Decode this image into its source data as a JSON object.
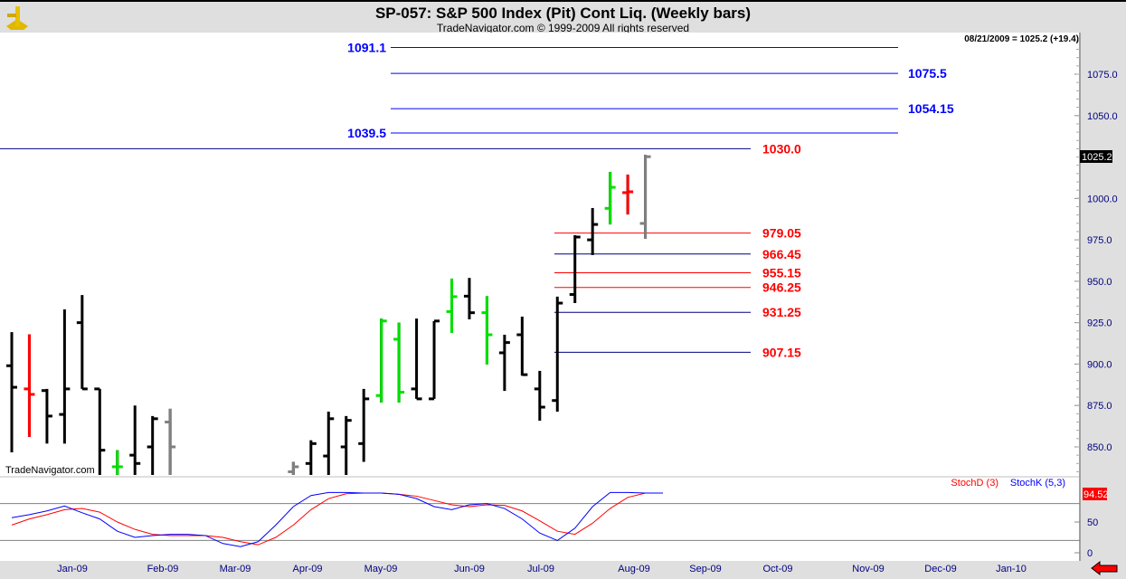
{
  "header": {
    "title": "SP-057:  S&P 500 Index (Pit) Cont Liq.  (Weekly bars)",
    "subtitle": "TradeNavigator.com © 1999-2009 All rights reserved",
    "last_readout": "08/21/2009 = 1025.2 (+19.4)",
    "watermark": "TradeNavigator.com"
  },
  "colors": {
    "up": "#000000",
    "down_red": "#ff0000",
    "green": "#00e000",
    "gray": "#808080",
    "blue": "#0000ff",
    "red": "#ff0000"
  },
  "chart_data": {
    "type": "ohlc",
    "title": "SP-057:  S&P 500 Index (Pit) Cont Liq.  (Weekly bars)",
    "ylim": [
      833,
      1100
    ],
    "y_ticks": [
      "1075.0",
      "1050.0",
      "1000.0",
      "975.0",
      "950.0",
      "925.0",
      "900.0",
      "875.0",
      "850.0"
    ],
    "y_tick_values": [
      1075,
      1050,
      1000,
      975,
      950,
      925,
      900,
      875,
      850
    ],
    "last_price_label": "1025.2",
    "x_labels": [
      "Jan-09",
      "Feb-09",
      "Mar-09",
      "Apr-09",
      "May-09",
      "Jun-09",
      "Jul-09",
      "Aug-09",
      "Sep-09",
      "Oct-09",
      "Nov-09",
      "Dec-09",
      "Jan-10"
    ],
    "bars": [
      {
        "w": 0,
        "o": 899,
        "h": 919.3,
        "l": 846.7,
        "c": 886,
        "col": "up"
      },
      {
        "w": 1,
        "o": 885,
        "h": 918,
        "l": 856,
        "c": 881.7,
        "col": "down_red"
      },
      {
        "w": 2,
        "o": 884,
        "h": 885,
        "l": 852,
        "c": 868.6,
        "col": "up"
      },
      {
        "w": 3,
        "o": 869.6,
        "h": 933,
        "l": 852,
        "c": 885,
        "col": "up"
      },
      {
        "w": 4,
        "o": 925,
        "h": 941.7,
        "l": 885,
        "c": 885,
        "col": "up"
      },
      {
        "w": 5,
        "o": 885,
        "h": 885,
        "l": 830,
        "c": 848,
        "col": "up"
      },
      {
        "w": 6,
        "o": 838,
        "h": 848,
        "l": 830,
        "c": 838,
        "col": "green"
      },
      {
        "w": 7,
        "o": 845,
        "h": 875,
        "l": 830,
        "c": 840,
        "col": "up"
      },
      {
        "w": 8,
        "o": 850,
        "h": 868.6,
        "l": 830,
        "c": 867,
        "col": "up"
      },
      {
        "w": 9,
        "o": 865,
        "h": 873,
        "l": 830,
        "c": 850,
        "col": "gray"
      },
      {
        "w": 16,
        "o": 835,
        "h": 841,
        "l": 830,
        "c": 838,
        "col": "gray"
      },
      {
        "w": 17,
        "o": 840,
        "h": 854,
        "l": 830,
        "c": 852,
        "col": "up"
      },
      {
        "w": 18,
        "o": 844.5,
        "h": 871.3,
        "l": 830,
        "c": 867,
        "col": "up"
      },
      {
        "w": 19,
        "o": 850,
        "h": 868.6,
        "l": 830,
        "c": 866,
        "col": "up"
      },
      {
        "w": 20,
        "o": 852,
        "h": 885,
        "l": 841,
        "c": 879,
        "col": "up"
      },
      {
        "w": 21,
        "o": 881,
        "h": 927.5,
        "l": 876.8,
        "c": 926,
        "col": "green"
      },
      {
        "w": 22,
        "o": 915,
        "h": 925,
        "l": 876.8,
        "c": 883,
        "col": "green"
      },
      {
        "w": 23,
        "o": 885,
        "h": 927.5,
        "l": 879,
        "c": 879,
        "col": "up"
      },
      {
        "w": 24,
        "o": 879,
        "h": 926,
        "l": 879,
        "c": 926,
        "col": "up"
      },
      {
        "w": 25,
        "o": 931.7,
        "h": 951.6,
        "l": 918.8,
        "c": 940.7,
        "col": "green"
      },
      {
        "w": 26,
        "o": 941,
        "h": 952,
        "l": 927,
        "c": 931,
        "col": "up"
      },
      {
        "w": 27,
        "o": 931,
        "h": 941,
        "l": 899.7,
        "c": 917.7,
        "col": "green"
      },
      {
        "w": 28,
        "o": 906.8,
        "h": 917.7,
        "l": 883.8,
        "c": 913,
        "col": "up"
      },
      {
        "w": 29,
        "o": 917.7,
        "h": 928.6,
        "l": 893,
        "c": 893.6,
        "col": "up"
      },
      {
        "w": 30,
        "o": 885,
        "h": 895.9,
        "l": 865.8,
        "c": 874,
        "col": "up"
      },
      {
        "w": 31,
        "o": 878,
        "h": 940.7,
        "l": 871.3,
        "c": 936.8,
        "col": "up"
      },
      {
        "w": 32,
        "o": 942,
        "h": 977.8,
        "l": 936.8,
        "c": 976.7,
        "col": "up"
      },
      {
        "w": 33,
        "o": 975,
        "h": 994.2,
        "l": 965.8,
        "c": 984.3,
        "col": "up"
      },
      {
        "w": 34,
        "o": 994,
        "h": 1016,
        "l": 984.3,
        "c": 1006.7,
        "col": "green"
      },
      {
        "w": 35,
        "o": 1003.5,
        "h": 1014.4,
        "l": 990.3,
        "c": 1004,
        "col": "down_red"
      },
      {
        "w": 36,
        "o": 984.9,
        "h": 1026.4,
        "l": 975.6,
        "c": 1025.2,
        "col": "gray"
      }
    ],
    "levels": [
      {
        "value": 1091.1,
        "label": "1091.1",
        "color": "blue",
        "side": "left",
        "span": "upper"
      },
      {
        "value": 1075.5,
        "label": "1075.5",
        "color": "blue",
        "side": "right",
        "span": "upper"
      },
      {
        "value": 1054.15,
        "label": "1054.15",
        "color": "blue",
        "side": "right",
        "span": "upper"
      },
      {
        "value": 1039.5,
        "label": "1039.5",
        "color": "blue",
        "side": "left",
        "span": "upper"
      },
      {
        "value": 1030.0,
        "label": "1030.0",
        "color": "red",
        "line": "black",
        "span": "full"
      },
      {
        "value": 979.05,
        "label": "979.05",
        "color": "red",
        "line": "red",
        "span": "lower"
      },
      {
        "value": 966.45,
        "label": "966.45",
        "color": "red",
        "line": "black",
        "span": "lower"
      },
      {
        "value": 955.15,
        "label": "955.15",
        "color": "red",
        "line": "red",
        "span": "lower"
      },
      {
        "value": 946.25,
        "label": "946.25",
        "color": "red",
        "line": "red",
        "span": "lower"
      },
      {
        "value": 931.25,
        "label": "931.25",
        "color": "red",
        "line": "black",
        "span": "lower"
      },
      {
        "value": 907.15,
        "label": "907.15",
        "color": "red",
        "line": "black",
        "span": "lower"
      }
    ],
    "stoch": {
      "legend_d": "StochD (3)",
      "legend_k": "StochK (5,3)",
      "last_value": "94.52",
      "y_ticks": [
        "50",
        "0"
      ],
      "ylim": [
        0,
        100
      ],
      "grid": [
        20,
        80
      ],
      "K": [
        57,
        62,
        68,
        76,
        65,
        55,
        35,
        25,
        28,
        30,
        30,
        28,
        15,
        10,
        18,
        45,
        75,
        93,
        98,
        98,
        97,
        97,
        95,
        88,
        75,
        70,
        78,
        80,
        72,
        55,
        32,
        20,
        40,
        75,
        98,
        98,
        97,
        97
      ],
      "D": [
        45,
        55,
        62,
        70,
        72,
        66,
        50,
        38,
        30,
        28,
        28,
        28,
        25,
        18,
        13,
        25,
        45,
        70,
        88,
        96,
        97,
        97,
        95,
        92,
        85,
        78,
        75,
        78,
        77,
        68,
        52,
        35,
        30,
        48,
        72,
        90,
        97,
        97
      ]
    }
  }
}
